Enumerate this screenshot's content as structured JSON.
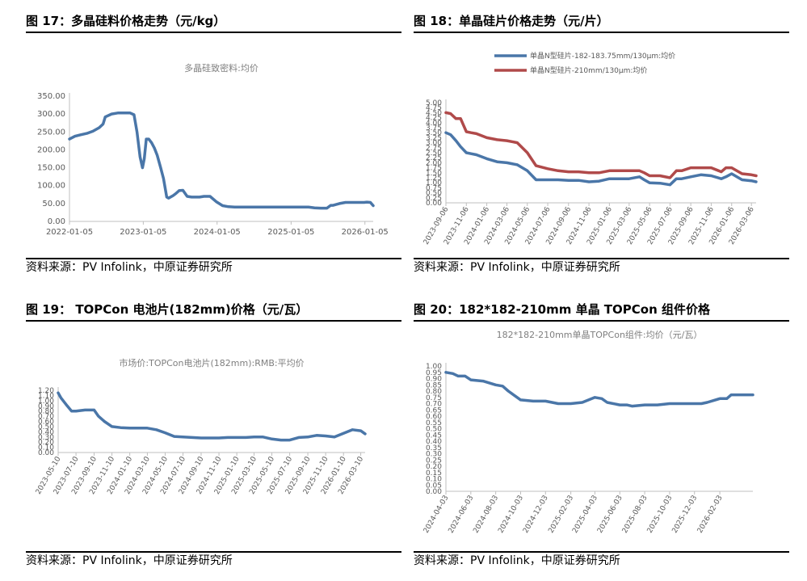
{
  "charts": [
    {
      "figure_title": "图 17：多晶硅料价格走势（元/kg）",
      "source": "资料来源：PV Infolink，中原证券研究所"
    },
    {
      "figure_title": "图 18：单晶硅片价格走势（元/片）",
      "source": "资料来源：PV Infolink，中原证券研究所"
    },
    {
      "figure_title": "图 19：  TOPCon 电池片(182mm)价格（元/瓦）",
      "source": "资料来源：PV Infolink，中原证券研究所"
    },
    {
      "figure_title": "图 20：182*182-210mm 单晶 TOPCon 组件价格",
      "source": "资料来源：PV Infolink，中原证券研究所"
    }
  ],
  "chart_data": [
    {
      "type": "line",
      "title": "多晶硅致密料:均价",
      "ylim": [
        0,
        350
      ],
      "yticks": [
        "0.00",
        "50.00",
        "100.00",
        "150.00",
        "200.00",
        "250.00",
        "300.00",
        "350.00"
      ],
      "xlim": [
        "2022-01-05",
        "2026-02-15"
      ],
      "xticks": [
        "2022-01-05",
        "2023-01-05",
        "2024-01-05",
        "2025-01-05",
        "2026-01-05"
      ],
      "grid": false,
      "series": [
        {
          "color": "#4A76A8",
          "x": [
            "2022-01-05",
            "2022-02-01",
            "2022-03-01",
            "2022-04-01",
            "2022-05-01",
            "2022-06-01",
            "2022-06-20",
            "2022-07-01",
            "2022-08-01",
            "2022-09-01",
            "2022-10-01",
            "2022-11-01",
            "2022-11-20",
            "2022-12-05",
            "2022-12-20",
            "2023-01-01",
            "2023-01-10",
            "2023-01-20",
            "2023-02-01",
            "2023-02-15",
            "2023-03-01",
            "2023-03-15",
            "2023-04-01",
            "2023-04-15",
            "2023-05-01",
            "2023-05-10",
            "2023-06-01",
            "2023-06-15",
            "2023-07-01",
            "2023-07-20",
            "2023-08-10",
            "2023-09-01",
            "2023-09-20",
            "2023-10-10",
            "2023-11-01",
            "2023-12-01",
            "2024-01-01",
            "2024-02-01",
            "2024-03-01",
            "2024-04-01",
            "2024-05-01",
            "2024-06-01",
            "2024-07-01",
            "2024-08-01",
            "2024-09-01",
            "2024-10-01",
            "2024-11-01",
            "2024-12-01",
            "2025-01-01",
            "2025-02-01",
            "2025-03-01",
            "2025-04-01",
            "2025-05-01",
            "2025-06-01",
            "2025-07-01",
            "2025-07-20",
            "2025-08-01",
            "2025-09-01",
            "2025-10-01",
            "2025-11-01",
            "2025-12-01",
            "2026-01-01",
            "2026-01-15",
            "2026-02-01",
            "2026-02-15"
          ],
          "y": [
            230,
            238,
            242,
            246,
            252,
            262,
            272,
            292,
            300,
            303,
            303,
            303,
            298,
            250,
            180,
            150,
            175,
            230,
            230,
            220,
            205,
            185,
            150,
            120,
            68,
            65,
            72,
            78,
            86,
            87,
            70,
            68,
            68,
            68,
            70,
            70,
            55,
            44,
            41,
            40,
            40,
            40,
            40,
            40,
            40,
            40,
            40,
            40,
            40,
            40,
            40,
            40,
            38,
            37,
            37,
            45,
            45,
            50,
            53,
            53,
            53,
            53,
            54,
            53,
            44
          ]
        }
      ]
    },
    {
      "type": "line",
      "ylim": [
        0,
        5
      ],
      "yticks": [
        "0.00",
        "0.25",
        "0.50",
        "0.75",
        "1.00",
        "1.25",
        "1.50",
        "1.75",
        "2.00",
        "2.25",
        "2.50",
        "2.75",
        "3.00",
        "3.25",
        "3.50",
        "3.75",
        "4.00",
        "4.25",
        "4.50",
        "4.75",
        "5.00"
      ],
      "xlim": [
        "2023-09-06",
        "2026-03-20"
      ],
      "xticks": [
        "2023-09-06",
        "2023-11-06",
        "2024-01-06",
        "2024-03-06",
        "2024-05-06",
        "2024-07-06",
        "2024-09-06",
        "2024-11-06",
        "2025-01-06",
        "2025-03-06",
        "2025-05-06",
        "2025-07-06",
        "2025-09-06",
        "2025-11-06",
        "2026-01-06",
        "2026-03-06"
      ],
      "legend": "top",
      "grid": false,
      "series": [
        {
          "name": "单晶N型硅片-182-183.75mm/130μm:均价",
          "color": "#4A76A8",
          "x": [
            "2023-09-06",
            "2023-09-20",
            "2023-10-06",
            "2023-10-20",
            "2023-11-06",
            "2023-11-20",
            "2023-12-06",
            "2024-01-06",
            "2024-02-06",
            "2024-03-06",
            "2024-04-06",
            "2024-05-06",
            "2024-06-01",
            "2024-07-06",
            "2024-08-06",
            "2024-09-06",
            "2024-10-06",
            "2024-11-06",
            "2024-12-06",
            "2025-01-06",
            "2025-02-06",
            "2025-03-06",
            "2025-04-06",
            "2025-04-20",
            "2025-05-06",
            "2025-06-06",
            "2025-07-06",
            "2025-07-25",
            "2025-08-10",
            "2025-09-06",
            "2025-10-06",
            "2025-11-06",
            "2025-12-06",
            "2025-12-20",
            "2026-01-06",
            "2026-02-06",
            "2026-03-06",
            "2026-03-20"
          ],
          "y": [
            3.5,
            3.4,
            3.1,
            2.8,
            2.5,
            2.45,
            2.4,
            2.2,
            2.05,
            2.0,
            1.9,
            1.6,
            1.15,
            1.15,
            1.15,
            1.12,
            1.12,
            1.05,
            1.08,
            1.2,
            1.2,
            1.2,
            1.3,
            1.15,
            1.0,
            0.98,
            0.9,
            1.2,
            1.2,
            1.3,
            1.4,
            1.35,
            1.2,
            1.3,
            1.45,
            1.15,
            1.1,
            1.05
          ]
        },
        {
          "name": "单晶N型硅片-210mm/130μm:均价",
          "color": "#B04A4A",
          "x": [
            "2023-09-06",
            "2023-09-20",
            "2023-10-06",
            "2023-10-20",
            "2023-11-06",
            "2023-11-20",
            "2023-12-06",
            "2024-01-06",
            "2024-02-06",
            "2024-03-06",
            "2024-04-06",
            "2024-05-06",
            "2024-06-01",
            "2024-07-06",
            "2024-08-06",
            "2024-09-06",
            "2024-10-06",
            "2024-11-06",
            "2024-12-06",
            "2025-01-06",
            "2025-02-06",
            "2025-03-06",
            "2025-04-06",
            "2025-04-20",
            "2025-05-06",
            "2025-06-06",
            "2025-07-06",
            "2025-07-25",
            "2025-08-10",
            "2025-09-06",
            "2025-10-06",
            "2025-11-06",
            "2025-12-06",
            "2025-12-20",
            "2026-01-06",
            "2026-02-06",
            "2026-03-06",
            "2026-03-20"
          ],
          "y": [
            4.5,
            4.45,
            4.2,
            4.2,
            3.55,
            3.5,
            3.45,
            3.25,
            3.15,
            3.1,
            3.0,
            2.5,
            1.85,
            1.7,
            1.6,
            1.55,
            1.55,
            1.5,
            1.5,
            1.6,
            1.6,
            1.6,
            1.6,
            1.5,
            1.35,
            1.35,
            1.25,
            1.6,
            1.6,
            1.75,
            1.75,
            1.75,
            1.55,
            1.75,
            1.75,
            1.45,
            1.4,
            1.35
          ]
        }
      ]
    },
    {
      "type": "line",
      "title": "市场价:TOPCon电池片(182mm):RMB:平均价",
      "ylim": [
        0,
        1.2
      ],
      "yticks": [
        "0.00",
        "0.10",
        "0.20",
        "0.30",
        "0.40",
        "0.50",
        "0.60",
        "0.70",
        "0.80",
        "0.90",
        "1.00",
        "1.10",
        "1.20"
      ],
      "xlim": [
        "2023-05-10",
        "2026-03-25"
      ],
      "xticks": [
        "2023-05-10",
        "2023-07-10",
        "2023-09-10",
        "2023-11-10",
        "2024-01-10",
        "2024-03-10",
        "2024-05-10",
        "2024-07-10",
        "2024-09-10",
        "2024-11-10",
        "2025-01-10",
        "2025-03-10",
        "2025-05-10",
        "2025-07-10",
        "2025-09-10",
        "2025-11-10",
        "2026-01-10",
        "2026-03-10"
      ],
      "grid": false,
      "series": [
        {
          "color": "#4A76A8",
          "x": [
            "2023-05-10",
            "2023-05-20",
            "2023-06-10",
            "2023-06-25",
            "2023-07-10",
            "2023-08-10",
            "2023-09-10",
            "2023-09-25",
            "2023-10-15",
            "2023-11-10",
            "2023-12-10",
            "2024-01-10",
            "2024-02-10",
            "2024-03-10",
            "2024-04-10",
            "2024-05-10",
            "2024-06-10",
            "2024-07-10",
            "2024-08-10",
            "2024-09-10",
            "2024-10-10",
            "2024-11-10",
            "2024-12-10",
            "2025-01-10",
            "2025-02-10",
            "2025-03-10",
            "2025-04-10",
            "2025-05-10",
            "2025-06-10",
            "2025-07-10",
            "2025-08-10",
            "2025-09-10",
            "2025-10-10",
            "2025-11-10",
            "2025-12-10",
            "2026-01-10",
            "2026-02-10",
            "2026-03-10",
            "2026-03-25"
          ],
          "y": [
            1.15,
            1.05,
            0.9,
            0.8,
            0.8,
            0.82,
            0.82,
            0.7,
            0.6,
            0.5,
            0.48,
            0.47,
            0.47,
            0.47,
            0.44,
            0.38,
            0.31,
            0.3,
            0.29,
            0.28,
            0.28,
            0.28,
            0.29,
            0.29,
            0.29,
            0.3,
            0.3,
            0.26,
            0.24,
            0.24,
            0.29,
            0.3,
            0.33,
            0.32,
            0.3,
            0.37,
            0.44,
            0.42,
            0.36
          ]
        }
      ]
    },
    {
      "type": "line",
      "title": "182*182-210mm单晶TOPCon组件:均价（元/瓦）",
      "ylim": [
        0,
        1.0
      ],
      "yticks": [
        "0.00",
        "0.05",
        "0.10",
        "0.15",
        "0.20",
        "0.25",
        "0.30",
        "0.35",
        "0.40",
        "0.45",
        "0.50",
        "0.55",
        "0.60",
        "0.65",
        "0.70",
        "0.75",
        "0.80",
        "0.85",
        "0.90",
        "0.95",
        "1.00"
      ],
      "xlim": [
        "2024-04-03",
        "2026-04-25"
      ],
      "xticks": [
        "2024-04-03",
        "2024-06-03",
        "2024-08-03",
        "2024-10-03",
        "2024-12-03",
        "2025-02-03",
        "2025-04-03",
        "2025-06-03",
        "2025-08-03",
        "2025-10-03",
        "2025-12-03",
        "2026-02-03"
      ],
      "grid": false,
      "series": [
        {
          "color": "#4A76A8",
          "x": [
            "2024-04-03",
            "2024-04-20",
            "2024-05-03",
            "2024-05-20",
            "2024-06-03",
            "2024-07-03",
            "2024-08-03",
            "2024-08-20",
            "2024-09-03",
            "2024-09-20",
            "2024-10-03",
            "2024-11-03",
            "2024-12-03",
            "2025-01-03",
            "2025-02-03",
            "2025-03-03",
            "2025-04-03",
            "2025-04-20",
            "2025-05-03",
            "2025-06-03",
            "2025-06-20",
            "2025-07-03",
            "2025-08-03",
            "2025-09-03",
            "2025-10-03",
            "2025-11-03",
            "2025-12-03",
            "2025-12-20",
            "2026-01-03",
            "2026-02-03",
            "2026-02-20",
            "2026-03-03",
            "2026-04-25"
          ],
          "y": [
            0.95,
            0.94,
            0.92,
            0.92,
            0.89,
            0.88,
            0.85,
            0.84,
            0.8,
            0.76,
            0.73,
            0.72,
            0.72,
            0.7,
            0.7,
            0.71,
            0.75,
            0.74,
            0.71,
            0.69,
            0.69,
            0.68,
            0.69,
            0.69,
            0.7,
            0.7,
            0.7,
            0.7,
            0.71,
            0.74,
            0.74,
            0.77,
            0.77
          ]
        }
      ]
    }
  ]
}
